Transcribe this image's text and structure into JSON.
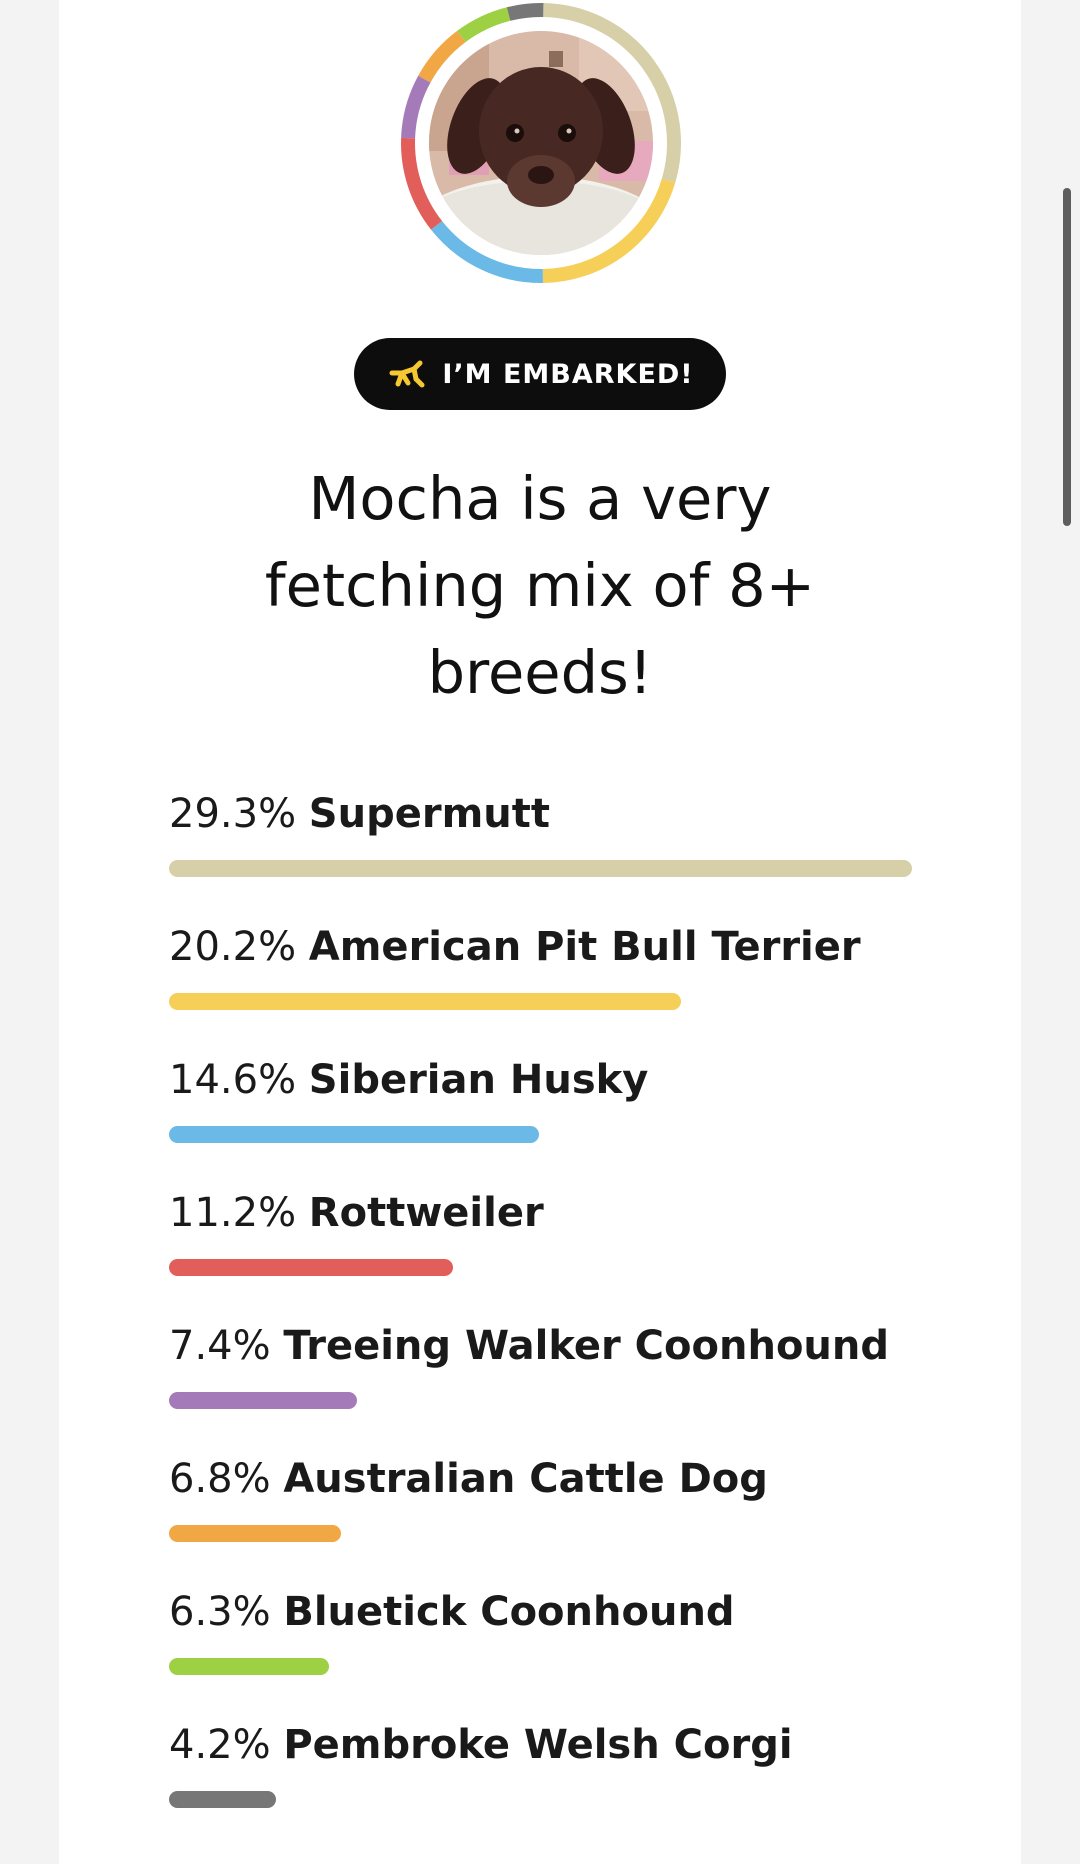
{
  "badge": {
    "label": "I’M EMBARKED!",
    "icon": "balloon-dog-icon",
    "icon_color": "#f5c730"
  },
  "headline": "Mocha is a very fetching mix of 8+ breeds!",
  "avatar": {
    "subject": "photo of a brown puppy on a white pillow",
    "ring_colors": [
      "#d6cfa8",
      "#f5cf58",
      "#6ab9e6",
      "#e25e5a",
      "#a47bb8",
      "#f0a744",
      "#9ed043",
      "#777777"
    ]
  },
  "breeds": [
    {
      "pct": "29.3%",
      "name": "Supermutt",
      "percent": 29.3,
      "color": "#d6cfa8"
    },
    {
      "pct": "20.2%",
      "name": "American Pit Bull Terrier",
      "percent": 20.2,
      "color": "#f5cf58"
    },
    {
      "pct": "14.6%",
      "name": "Siberian Husky",
      "percent": 14.6,
      "color": "#6ab9e6"
    },
    {
      "pct": "11.2%",
      "name": "Rottweiler",
      "percent": 11.2,
      "color": "#e25e5a"
    },
    {
      "pct": "7.4%",
      "name": "Treeing Walker Coonhound",
      "percent": 7.4,
      "color": "#a47bb8"
    },
    {
      "pct": "6.8%",
      "name": "Australian Cattle Dog",
      "percent": 6.8,
      "color": "#f0a744"
    },
    {
      "pct": "6.3%",
      "name": "Bluetick Coonhound",
      "percent": 6.3,
      "color": "#9ed043"
    },
    {
      "pct": "4.2%",
      "name": "Pembroke Welsh Corgi",
      "percent": 4.2,
      "color": "#777777"
    }
  ]
}
